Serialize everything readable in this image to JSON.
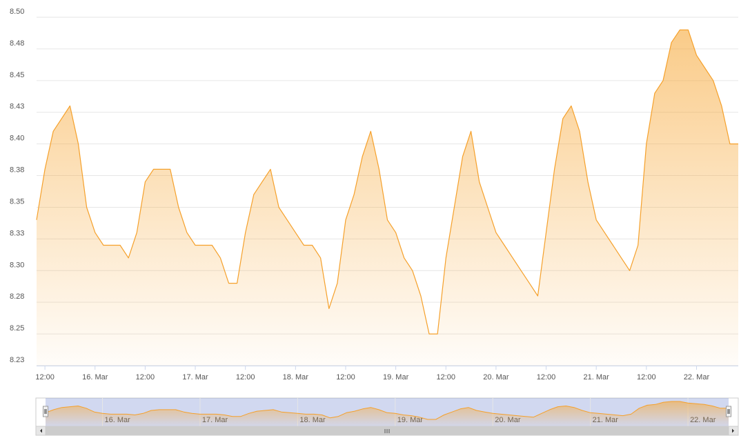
{
  "chart_data": {
    "type": "area",
    "color": "#f5a02a",
    "grid": true,
    "x": [
      "15. Mar 10:00",
      "15. Mar 12:00",
      "15. Mar 14:00",
      "15. Mar 16:00",
      "15. Mar 18:00",
      "15. Mar 20:00",
      "15. Mar 22:00",
      "16. Mar 00:00",
      "16. Mar 02:00",
      "16. Mar 04:00",
      "16. Mar 06:00",
      "16. Mar 08:00",
      "16. Mar 10:00",
      "16. Mar 12:00",
      "16. Mar 14:00",
      "16. Mar 16:00",
      "16. Mar 18:00",
      "16. Mar 20:00",
      "16. Mar 22:00",
      "17. Mar 00:00",
      "17. Mar 02:00",
      "17. Mar 04:00",
      "17. Mar 06:00",
      "17. Mar 08:00",
      "17. Mar 10:00",
      "17. Mar 12:00",
      "17. Mar 14:00",
      "17. Mar 16:00",
      "17. Mar 18:00",
      "17. Mar 20:00",
      "17. Mar 22:00",
      "18. Mar 00:00",
      "18. Mar 02:00",
      "18. Mar 04:00",
      "18. Mar 06:00",
      "18. Mar 08:00",
      "18. Mar 10:00",
      "18. Mar 12:00",
      "18. Mar 14:00",
      "18. Mar 16:00",
      "18. Mar 18:00",
      "18. Mar 20:00",
      "18. Mar 22:00",
      "19. Mar 00:00",
      "19. Mar 02:00",
      "19. Mar 04:00",
      "19. Mar 06:00",
      "19. Mar 08:00",
      "19. Mar 10:00",
      "19. Mar 12:00",
      "19. Mar 14:00",
      "19. Mar 16:00",
      "19. Mar 18:00",
      "19. Mar 20:00",
      "19. Mar 22:00",
      "20. Mar 00:00",
      "20. Mar 02:00",
      "20. Mar 04:00",
      "20. Mar 06:00",
      "20. Mar 08:00",
      "20. Mar 10:00",
      "20. Mar 12:00",
      "20. Mar 14:00",
      "20. Mar 16:00",
      "20. Mar 18:00",
      "20. Mar 20:00",
      "20. Mar 22:00",
      "21. Mar 00:00",
      "21. Mar 02:00",
      "21. Mar 04:00",
      "21. Mar 06:00",
      "21. Mar 08:00",
      "21. Mar 10:00",
      "21. Mar 12:00",
      "21. Mar 14:00",
      "21. Mar 16:00",
      "21. Mar 18:00",
      "21. Mar 20:00",
      "21. Mar 22:00",
      "22. Mar 00:00",
      "22. Mar 02:00",
      "22. Mar 04:00",
      "22. Mar 06:00",
      "22. Mar 08:00",
      "22. Mar 10:00"
    ],
    "values": [
      8.34,
      8.38,
      8.41,
      8.42,
      8.43,
      8.4,
      8.35,
      8.33,
      8.32,
      8.32,
      8.32,
      8.31,
      8.33,
      8.37,
      8.38,
      8.38,
      8.38,
      8.35,
      8.33,
      8.32,
      8.32,
      8.32,
      8.31,
      8.29,
      8.29,
      8.33,
      8.36,
      8.37,
      8.38,
      8.35,
      8.34,
      8.33,
      8.32,
      8.32,
      8.31,
      8.27,
      8.29,
      8.34,
      8.36,
      8.39,
      8.41,
      8.38,
      8.34,
      8.33,
      8.31,
      8.3,
      8.28,
      8.25,
      8.25,
      8.31,
      8.35,
      8.39,
      8.41,
      8.37,
      8.35,
      8.33,
      8.32,
      8.31,
      8.3,
      8.29,
      8.28,
      8.33,
      8.38,
      8.42,
      8.43,
      8.41,
      8.37,
      8.34,
      8.33,
      8.32,
      8.31,
      8.3,
      8.32,
      8.4,
      8.44,
      8.45,
      8.48,
      8.49,
      8.49,
      8.47,
      8.46,
      8.45,
      8.43,
      8.4,
      8.4
    ],
    "xlim": [
      "15. Mar 10:00",
      "22. Mar 10:00"
    ],
    "xticks": [
      {
        "value": "15. Mar 12:00",
        "label": "12:00"
      },
      {
        "value": "16. Mar 00:00",
        "label": "16. Mar"
      },
      {
        "value": "16. Mar 12:00",
        "label": "12:00"
      },
      {
        "value": "17. Mar 00:00",
        "label": "17. Mar"
      },
      {
        "value": "17. Mar 12:00",
        "label": "12:00"
      },
      {
        "value": "18. Mar 00:00",
        "label": "18. Mar"
      },
      {
        "value": "18. Mar 12:00",
        "label": "12:00"
      },
      {
        "value": "19. Mar 00:00",
        "label": "19. Mar"
      },
      {
        "value": "19. Mar 12:00",
        "label": "12:00"
      },
      {
        "value": "20. Mar 00:00",
        "label": "20. Mar"
      },
      {
        "value": "20. Mar 12:00",
        "label": "12:00"
      },
      {
        "value": "21. Mar 00:00",
        "label": "21. Mar"
      },
      {
        "value": "21. Mar 12:00",
        "label": "12:00"
      },
      {
        "value": "22. Mar 00:00",
        "label": "22. Mar"
      }
    ],
    "ylim": [
      8.225,
      8.5
    ],
    "yticks": [
      {
        "value": 8.225,
        "label": "8.23"
      },
      {
        "value": 8.25,
        "label": "8.25"
      },
      {
        "value": 8.275,
        "label": "8.28"
      },
      {
        "value": 8.3,
        "label": "8.30"
      },
      {
        "value": 8.325,
        "label": "8.33"
      },
      {
        "value": 8.35,
        "label": "8.35"
      },
      {
        "value": 8.375,
        "label": "8.38"
      },
      {
        "value": 8.4,
        "label": "8.40"
      },
      {
        "value": 8.425,
        "label": "8.43"
      },
      {
        "value": 8.45,
        "label": "8.45"
      },
      {
        "value": 8.475,
        "label": "8.48"
      },
      {
        "value": 8.5,
        "label": "8.50"
      }
    ]
  }
}
